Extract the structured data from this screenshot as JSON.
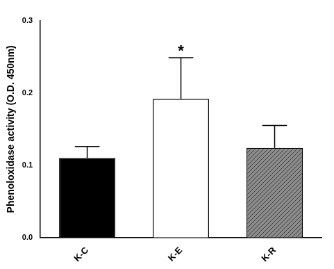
{
  "chart_data": {
    "type": "bar",
    "y_label": "Phenoloxidase activity (O.D. 450nm)",
    "categories": [
      "K-C",
      "K-E",
      "K-R"
    ],
    "values": [
      0.11,
      0.192,
      0.124
    ],
    "errors": [
      0.016,
      0.057,
      0.031
    ],
    "colors": [
      "#000000",
      "#ffffff",
      "#8c8c8c"
    ],
    "ylim": [
      0,
      0.3
    ],
    "yticks": [
      {
        "value": 0,
        "label": "0.0"
      },
      0.1,
      0.2,
      0.3
    ],
    "grid": false,
    "annotations": [
      {
        "text": "*",
        "category": "K-E"
      }
    ]
  }
}
